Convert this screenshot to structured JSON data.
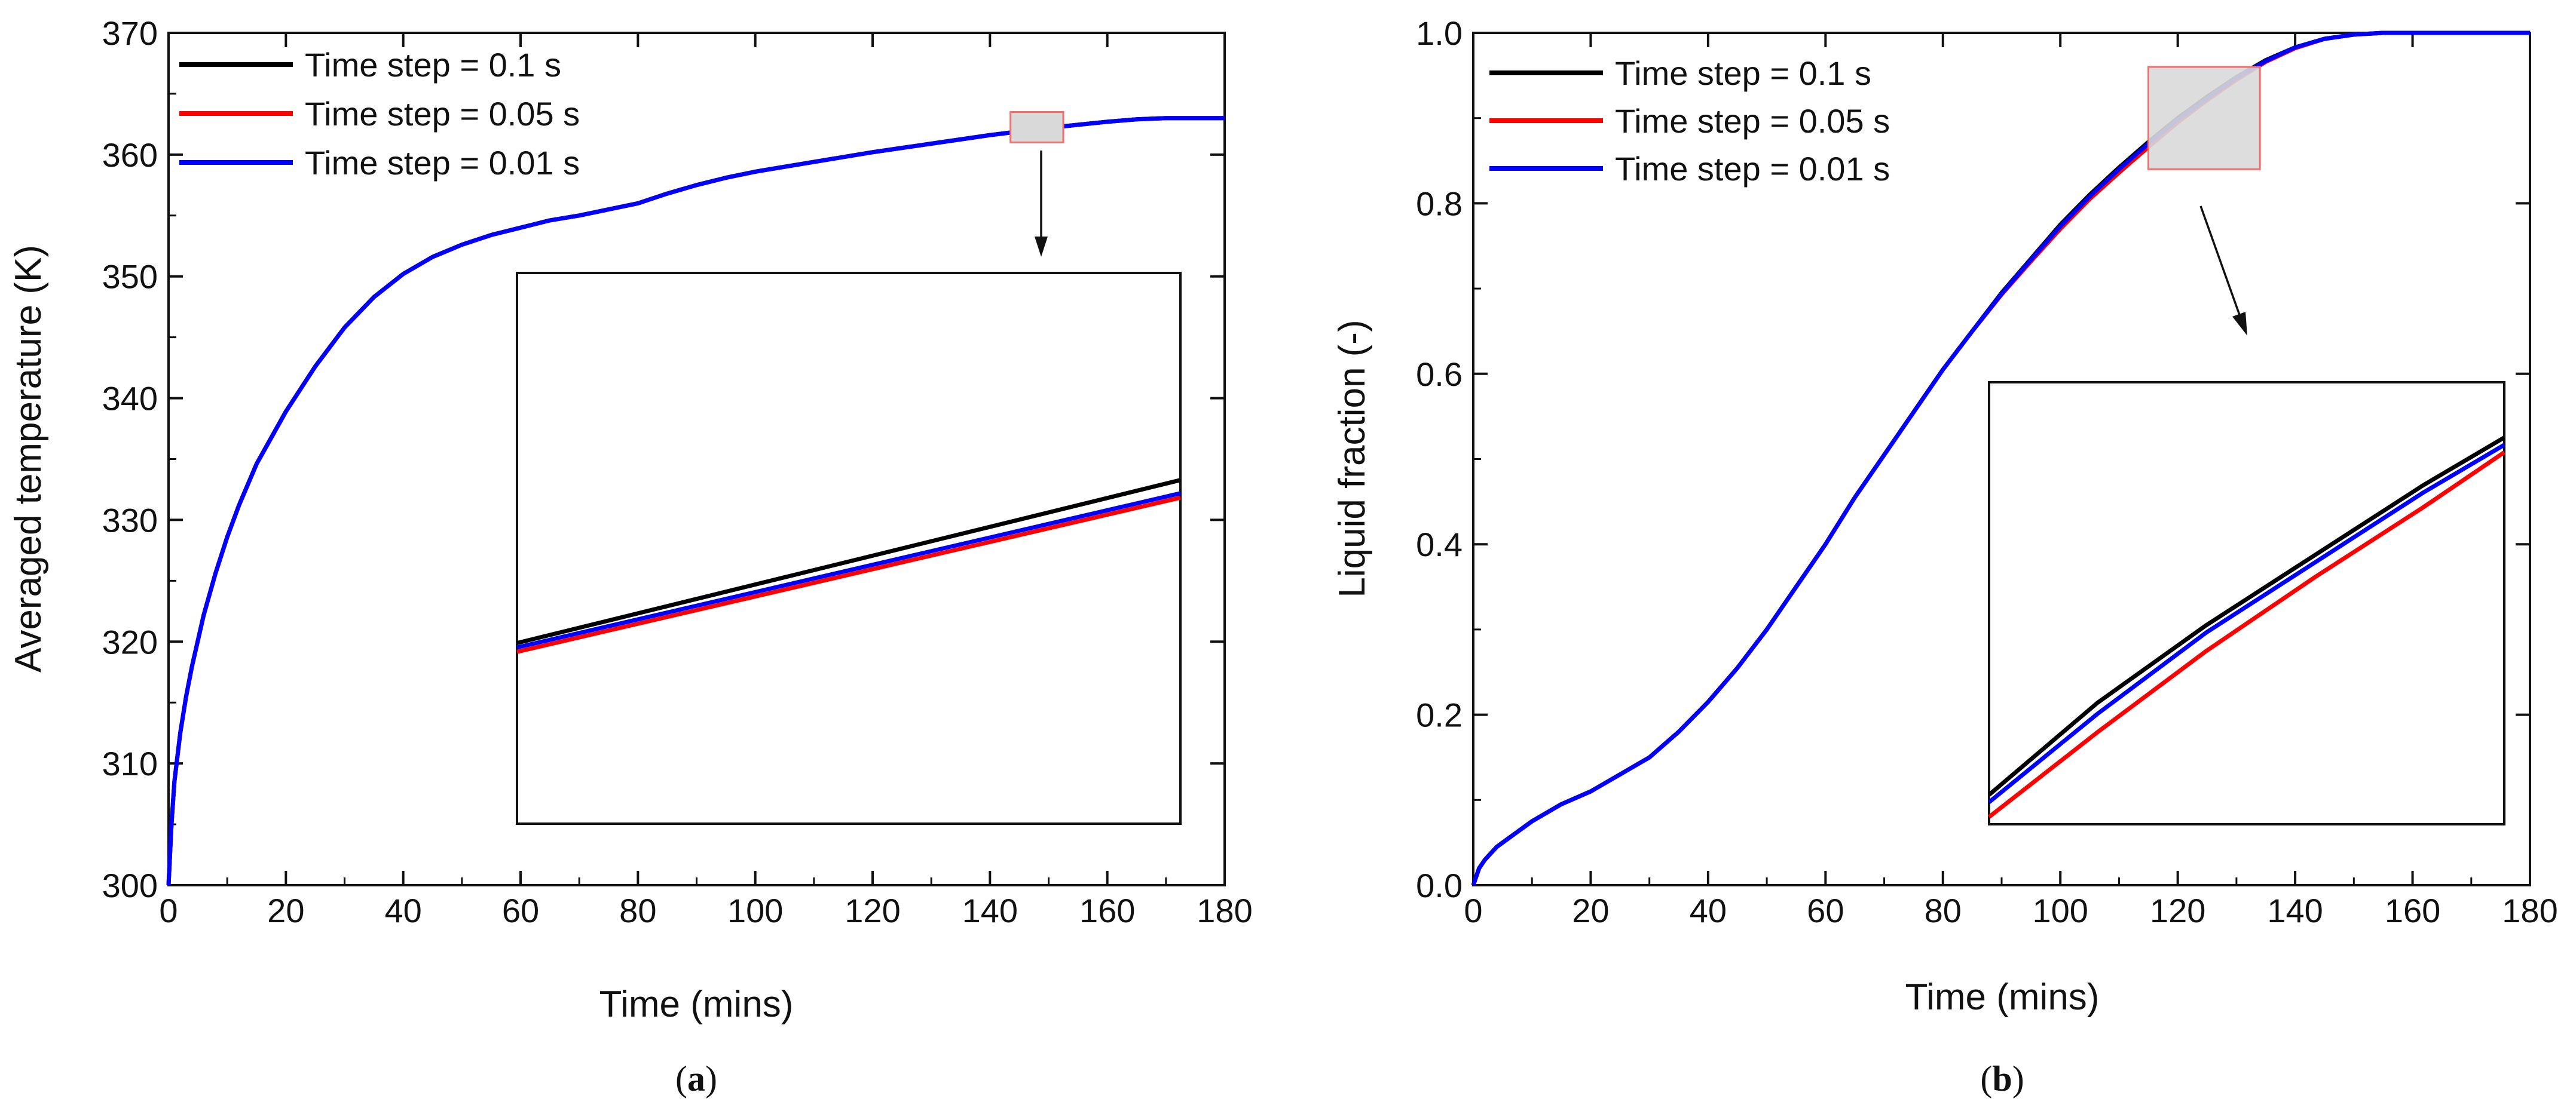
{
  "chart_data": [
    {
      "type": "line",
      "panel_label": "a",
      "xlabel": "Time (mins)",
      "ylabel": "Averaged temperature (K)",
      "xlim": [
        0,
        180
      ],
      "ylim": [
        300,
        370
      ],
      "xticks": [
        0,
        20,
        40,
        60,
        80,
        100,
        120,
        140,
        160,
        180
      ],
      "yticks": [
        300,
        310,
        320,
        330,
        340,
        350,
        360,
        370
      ],
      "legend_position": "top-left",
      "x": [
        0,
        0.5,
        1,
        2,
        3,
        4,
        6,
        8,
        10,
        12,
        15,
        20,
        25,
        30,
        35,
        40,
        45,
        50,
        55,
        60,
        65,
        70,
        75,
        80,
        85,
        90,
        95,
        100,
        110,
        120,
        130,
        140,
        150,
        160,
        165,
        170,
        173,
        180
      ],
      "series": [
        {
          "name": "Time step = 0.1 s",
          "color": "#000000",
          "values": [
            300,
            305,
            308.5,
            312.5,
            315.5,
            318,
            322.2,
            325.6,
            328.6,
            331.2,
            334.6,
            338.9,
            342.6,
            345.8,
            348.3,
            350.2,
            351.6,
            352.6,
            353.4,
            354,
            354.6,
            355,
            355.5,
            356,
            356.8,
            357.5,
            358.1,
            358.6,
            359.4,
            360.2,
            360.9,
            361.6,
            362.2,
            362.7,
            362.9,
            363,
            363,
            363
          ]
        },
        {
          "name": "Time step = 0.05 s",
          "color": "#ff0000",
          "values": [
            300,
            305,
            308.5,
            312.5,
            315.5,
            318,
            322.2,
            325.6,
            328.6,
            331.2,
            334.6,
            338.9,
            342.6,
            345.8,
            348.3,
            350.2,
            351.6,
            352.6,
            353.4,
            354,
            354.6,
            355,
            355.5,
            356,
            356.8,
            357.5,
            358.1,
            358.6,
            359.4,
            360.2,
            360.9,
            361.6,
            362.2,
            362.7,
            362.9,
            363,
            363,
            363
          ]
        },
        {
          "name": "Time step = 0.01 s",
          "color": "#0000ff",
          "values": [
            300,
            305,
            308.5,
            312.5,
            315.5,
            318,
            322.2,
            325.6,
            328.6,
            331.2,
            334.6,
            338.9,
            342.6,
            345.8,
            348.3,
            350.2,
            351.6,
            352.6,
            353.4,
            354,
            354.6,
            355,
            355.5,
            356,
            356.8,
            357.5,
            358.1,
            358.6,
            359.4,
            360.2,
            360.9,
            361.6,
            362.2,
            362.7,
            362.9,
            363,
            363,
            363
          ]
        }
      ],
      "zoom_region": {
        "x": [
          143.5,
          152.5
        ],
        "y": [
          361,
          363.5
        ]
      },
      "inset": {
        "x": [
          143.5,
          152.5
        ],
        "y": [
          361,
          363.5
        ],
        "series": [
          {
            "name": "Time step = 0.1 s",
            "color": "#000000",
            "values": [
              [
                143.5,
                361.82
              ],
              [
                152.5,
                362.56
              ]
            ]
          },
          {
            "name": "Time step = 0.05 s",
            "color": "#ff0000",
            "values": [
              [
                143.5,
                361.78
              ],
              [
                152.5,
                362.48
              ]
            ]
          },
          {
            "name": "Time step = 0.01 s",
            "color": "#0000ff",
            "values": [
              [
                143.5,
                361.8
              ],
              [
                152.5,
                362.5
              ]
            ]
          }
        ]
      }
    },
    {
      "type": "line",
      "panel_label": "b",
      "xlabel": "Time (mins)",
      "ylabel": "Liquid fraction (-)",
      "xlim": [
        0,
        180
      ],
      "ylim": [
        0,
        1
      ],
      "xticks": [
        0,
        20,
        40,
        60,
        80,
        100,
        120,
        140,
        160,
        180
      ],
      "yticks": [
        "0.0",
        "0.2",
        "0.4",
        "0.6",
        "0.8",
        "1.0"
      ],
      "legend_position": "top-left",
      "x": [
        0,
        1,
        2,
        4,
        6,
        10,
        15,
        20,
        25,
        30,
        35,
        40,
        45,
        50,
        55,
        60,
        65,
        70,
        75,
        80,
        85,
        90,
        95,
        100,
        105,
        110,
        115,
        120,
        125,
        130,
        135,
        140,
        145,
        150,
        155,
        160,
        170,
        180
      ],
      "series": [
        {
          "name": "Time step = 0.1 s",
          "color": "#000000",
          "values": [
            0,
            0.02,
            0.03,
            0.045,
            0.055,
            0.075,
            0.095,
            0.11,
            0.13,
            0.15,
            0.18,
            0.215,
            0.255,
            0.3,
            0.35,
            0.4,
            0.455,
            0.505,
            0.555,
            0.605,
            0.65,
            0.695,
            0.735,
            0.775,
            0.81,
            0.842,
            0.872,
            0.9,
            0.925,
            0.948,
            0.968,
            0.983,
            0.993,
            0.998,
            1,
            1,
            1,
            1
          ]
        },
        {
          "name": "Time step = 0.05 s",
          "color": "#ff0000",
          "values": [
            0,
            0.02,
            0.03,
            0.045,
            0.055,
            0.075,
            0.095,
            0.11,
            0.13,
            0.15,
            0.18,
            0.215,
            0.255,
            0.3,
            0.35,
            0.4,
            0.455,
            0.505,
            0.555,
            0.605,
            0.65,
            0.693,
            0.732,
            0.77,
            0.805,
            0.836,
            0.866,
            0.895,
            0.921,
            0.945,
            0.966,
            0.982,
            0.993,
            0.998,
            1,
            1,
            1,
            1
          ]
        },
        {
          "name": "Time step = 0.01 s",
          "color": "#0000ff",
          "values": [
            0,
            0.02,
            0.03,
            0.045,
            0.055,
            0.075,
            0.095,
            0.11,
            0.13,
            0.15,
            0.18,
            0.215,
            0.255,
            0.3,
            0.35,
            0.4,
            0.455,
            0.505,
            0.555,
            0.605,
            0.65,
            0.694,
            0.734,
            0.773,
            0.808,
            0.84,
            0.87,
            0.898,
            0.923,
            0.947,
            0.967,
            0.983,
            0.993,
            0.998,
            1,
            1,
            1,
            1
          ]
        }
      ],
      "zoom_region": {
        "x": [
          115,
          134
        ],
        "y": [
          0.84,
          0.96
        ]
      },
      "inset": {
        "x": [
          115,
          134
        ],
        "y": [
          0.84,
          0.96
        ],
        "series": [
          {
            "name": "Time step = 0.1 s",
            "color": "#000000",
            "values": [
              [
                115,
                0.848
              ],
              [
                119,
                0.873
              ],
              [
                123,
                0.894
              ],
              [
                127,
                0.913
              ],
              [
                131,
                0.932
              ],
              [
                134,
                0.945
              ]
            ]
          },
          {
            "name": "Time step = 0.05 s",
            "color": "#ff0000",
            "values": [
              [
                115,
                0.842
              ],
              [
                119,
                0.865
              ],
              [
                123,
                0.887
              ],
              [
                127,
                0.907
              ],
              [
                131,
                0.926
              ],
              [
                134,
                0.941
              ]
            ]
          },
          {
            "name": "Time step = 0.01 s",
            "color": "#0000ff",
            "values": [
              [
                115,
                0.846
              ],
              [
                119,
                0.87
              ],
              [
                123,
                0.892
              ],
              [
                127,
                0.911
              ],
              [
                131,
                0.93
              ],
              [
                134,
                0.943
              ]
            ]
          }
        ]
      }
    }
  ]
}
